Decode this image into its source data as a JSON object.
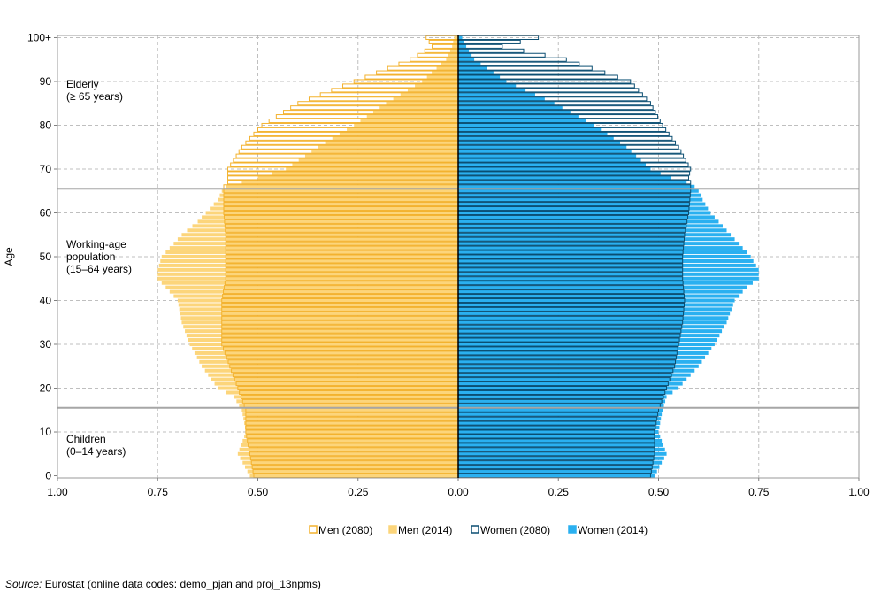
{
  "chart_data": {
    "type": "bar",
    "orientation": "horizontal",
    "ylabel": "Age",
    "y_ticks": [
      "0",
      "10",
      "20",
      "30",
      "40",
      "50",
      "60",
      "70",
      "80",
      "90",
      "100+"
    ],
    "x_ticks": [
      "1.00",
      "0.75",
      "0.50",
      "0.25",
      "0.00",
      "0.25",
      "0.50",
      "0.75",
      "1.00"
    ],
    "xlim": [
      -1,
      1
    ],
    "ylim": [
      0,
      100
    ],
    "age_groups": [
      "Elderly\n(≥ 65 years)",
      "Working-age\npopulation\n(15–64 years)",
      "Children\n(0–14 years)"
    ],
    "age_group_lines": [
      15.5,
      65.5
    ],
    "grid": true,
    "legend_position": "bottom",
    "colors": {
      "men_2014": "#FCD57B",
      "men_2080_outline": "#F3B22E",
      "women_2014": "#2AB0F0",
      "women_2080_outline": "#0B4E72",
      "grid": "#BFBFBF",
      "group_line": "#A6A6A6"
    },
    "series": [
      {
        "name": "Men (2080)",
        "keys": [
          0,
          5,
          10,
          15,
          20,
          25,
          30,
          35,
          40,
          45,
          50,
          55,
          60,
          65,
          66,
          67,
          68,
          70,
          75,
          80,
          85,
          90,
          95,
          98,
          100
        ],
        "values": [
          0.51,
          0.52,
          0.53,
          0.53,
          0.55,
          0.57,
          0.59,
          0.59,
          0.59,
          0.58,
          0.58,
          0.58,
          0.585,
          0.585,
          0.585,
          0.575,
          0.575,
          0.575,
          0.54,
          0.49,
          0.4,
          0.26,
          0.12,
          0.065,
          0.08
        ]
      },
      {
        "name": "Men (2014)",
        "keys": [
          0,
          5,
          10,
          15,
          18,
          20,
          25,
          30,
          35,
          40,
          43,
          45,
          47,
          50,
          53,
          55,
          58,
          60,
          63,
          65,
          66,
          67,
          68,
          70,
          75,
          80,
          85,
          90,
          95,
          98,
          100
        ],
        "values": [
          0.52,
          0.55,
          0.53,
          0.54,
          0.56,
          0.6,
          0.64,
          0.67,
          0.69,
          0.7,
          0.73,
          0.75,
          0.75,
          0.74,
          0.71,
          0.69,
          0.65,
          0.63,
          0.6,
          0.59,
          0.58,
          0.54,
          0.5,
          0.43,
          0.35,
          0.26,
          0.18,
          0.09,
          0.03,
          0.015,
          0.01
        ]
      },
      {
        "name": "Women (2080)",
        "keys": [
          0,
          5,
          10,
          15,
          20,
          25,
          30,
          35,
          40,
          45,
          50,
          55,
          60,
          65,
          66,
          67,
          68,
          70,
          75,
          80,
          85,
          90,
          95,
          98,
          100
        ],
        "values": [
          0.48,
          0.49,
          0.49,
          0.5,
          0.52,
          0.54,
          0.55,
          0.56,
          0.565,
          0.56,
          0.56,
          0.565,
          0.575,
          0.58,
          0.58,
          0.58,
          0.575,
          0.58,
          0.55,
          0.51,
          0.48,
          0.43,
          0.27,
          0.11,
          0.2
        ]
      },
      {
        "name": "Women (2014)",
        "keys": [
          0,
          5,
          10,
          15,
          18,
          20,
          25,
          30,
          35,
          40,
          43,
          45,
          47,
          50,
          53,
          55,
          58,
          60,
          63,
          65,
          66,
          67,
          68,
          70,
          75,
          80,
          85,
          90,
          95,
          98,
          100
        ],
        "values": [
          0.49,
          0.52,
          0.5,
          0.51,
          0.52,
          0.55,
          0.6,
          0.64,
          0.67,
          0.69,
          0.72,
          0.75,
          0.75,
          0.73,
          0.7,
          0.68,
          0.65,
          0.63,
          0.61,
          0.6,
          0.59,
          0.57,
          0.53,
          0.48,
          0.42,
          0.34,
          0.24,
          0.12,
          0.04,
          0.02,
          0.01
        ]
      }
    ]
  },
  "source": {
    "label": "Source:",
    "text": " Eurostat (online data codes: demo_pjan and proj_13npms)"
  }
}
